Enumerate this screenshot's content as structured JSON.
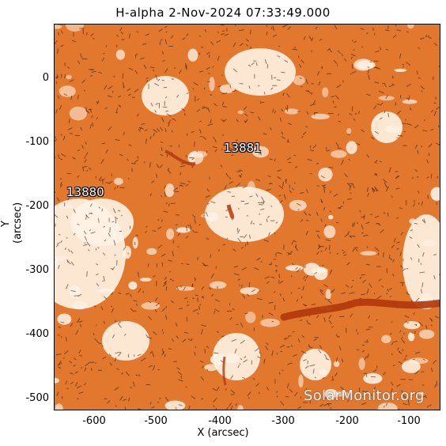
{
  "title": "H-alpha   2-Nov-2024  07:33:49.000",
  "x_axis": {
    "label": "X (arcsec)",
    "ticks": [
      "-600",
      "-500",
      "-400",
      "-300",
      "-200",
      "-100"
    ]
  },
  "y_axis": {
    "label": "Y (arcsec)",
    "ticks": [
      "0",
      "-100",
      "-200",
      "-300",
      "-400",
      "-500"
    ]
  },
  "active_regions": [
    "13881",
    "13880"
  ],
  "watermark": "SolarMonitor.org",
  "colors": {
    "chromosphere": "#e2782e",
    "plage": "#fff3e6",
    "filament": "#b23a0c",
    "fibrils": "#2a1208"
  }
}
